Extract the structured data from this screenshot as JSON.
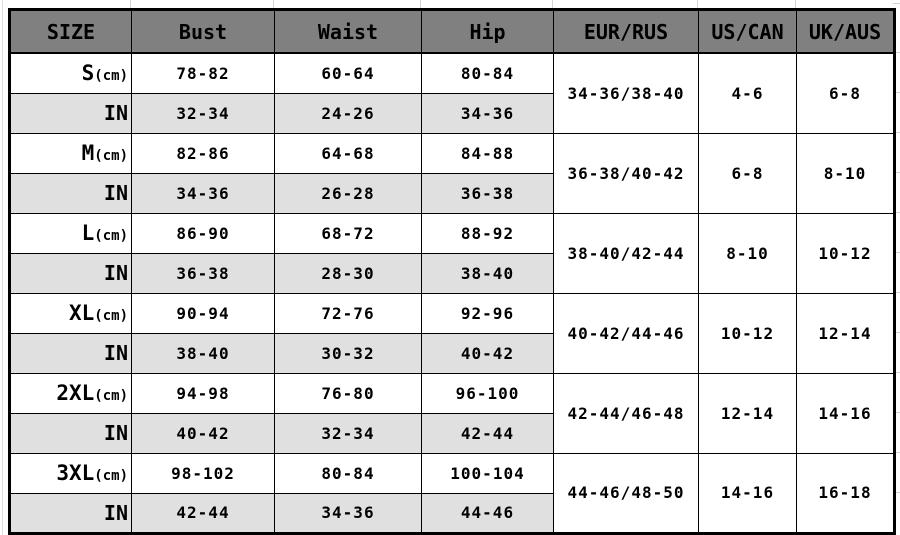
{
  "chart_data": {
    "type": "table",
    "columns": [
      "SIZE",
      "Bust",
      "Waist",
      "Hip",
      "EUR/RUS",
      "US/CAN",
      "UK/AUS"
    ],
    "row_unit_labels": {
      "cm_suffix": "(cm)",
      "inch_label": "IN"
    },
    "rows": [
      {
        "size": "S",
        "cm": {
          "bust": "78-82",
          "waist": "60-64",
          "hip": "80-84"
        },
        "inch": {
          "bust": "32-34",
          "waist": "24-26",
          "hip": "34-36"
        },
        "eur_rus": "34-36/38-40",
        "us_can": "4-6",
        "uk_aus": "6-8"
      },
      {
        "size": "M",
        "cm": {
          "bust": "82-86",
          "waist": "64-68",
          "hip": "84-88"
        },
        "inch": {
          "bust": "34-36",
          "waist": "26-28",
          "hip": "36-38"
        },
        "eur_rus": "36-38/40-42",
        "us_can": "6-8",
        "uk_aus": "8-10"
      },
      {
        "size": "L",
        "cm": {
          "bust": "86-90",
          "waist": "68-72",
          "hip": "88-92"
        },
        "inch": {
          "bust": "36-38",
          "waist": "28-30",
          "hip": "38-40"
        },
        "eur_rus": "38-40/42-44",
        "us_can": "8-10",
        "uk_aus": "10-12"
      },
      {
        "size": "XL",
        "cm": {
          "bust": "90-94",
          "waist": "72-76",
          "hip": "92-96"
        },
        "inch": {
          "bust": "38-40",
          "waist": "30-32",
          "hip": "40-42"
        },
        "eur_rus": "40-42/44-46",
        "us_can": "10-12",
        "uk_aus": "12-14"
      },
      {
        "size": "2XL",
        "cm": {
          "bust": "94-98",
          "waist": "76-80",
          "hip": "96-100"
        },
        "inch": {
          "bust": "40-42",
          "waist": "32-34",
          "hip": "42-44"
        },
        "eur_rus": "42-44/46-48",
        "us_can": "12-14",
        "uk_aus": "14-16"
      },
      {
        "size": "3XL",
        "cm": {
          "bust": "98-102",
          "waist": "80-84",
          "hip": "100-104"
        },
        "inch": {
          "bust": "42-44",
          "waist": "34-36",
          "hip": "44-46"
        },
        "eur_rus": "44-46/48-50",
        "us_can": "14-16",
        "uk_aus": "16-18"
      }
    ]
  },
  "colors": {
    "header_bg": "#808080",
    "alt_row_bg": "#e0e0e0",
    "border": "#000000",
    "text": "#000000"
  }
}
